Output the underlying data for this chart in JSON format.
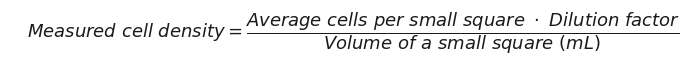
{
  "background_color": "#ffffff",
  "formula": "$\\mathit{Measured\\ cell\\ density} = \\dfrac{\\mathit{Average\\ cells\\ per\\ small\\ square\\ \\cdot\\ Dilution\\ factor}}{\\mathit{Volume\\ of\\ a\\ small\\ square\\ (mL)}}$",
  "text_color": "#1a1a1a",
  "font_size": 13,
  "figsize": [
    6.85,
    0.67
  ],
  "dpi": 100
}
